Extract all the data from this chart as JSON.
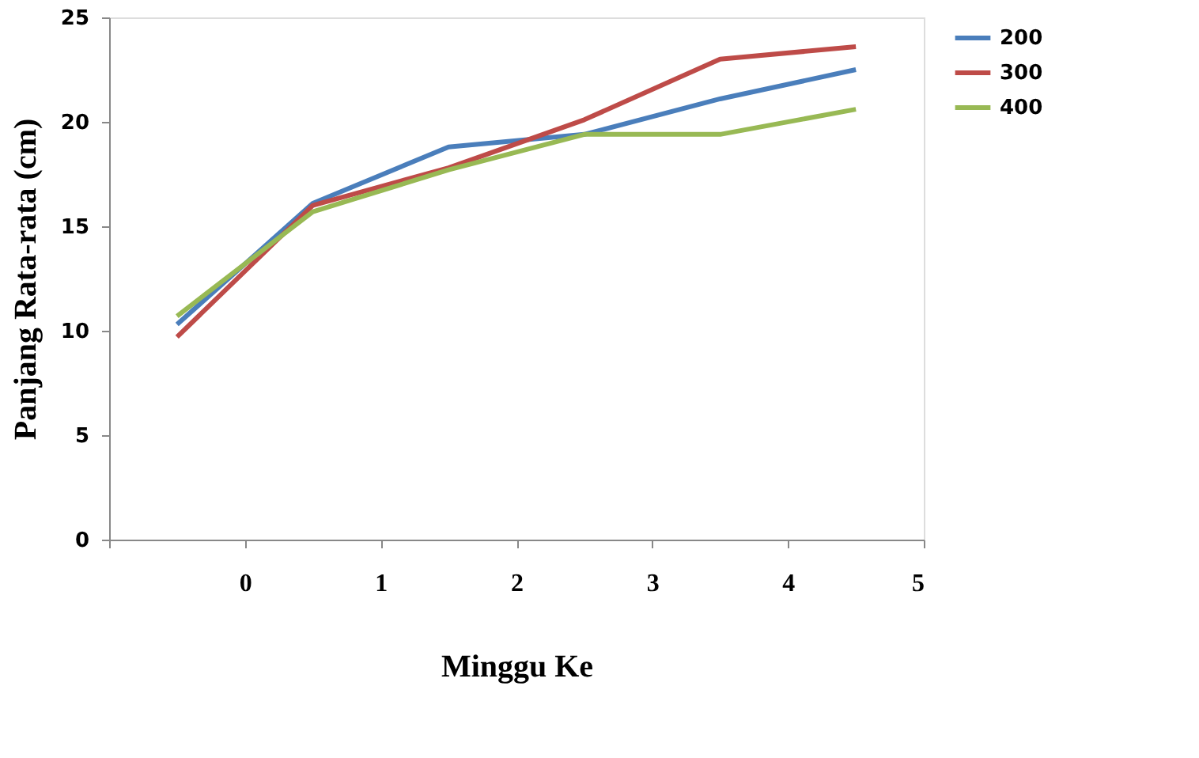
{
  "chart_data": {
    "type": "line",
    "xlabel": "Minggu Ke",
    "ylabel": "Panjang Rata-rata (cm)",
    "x": [
      -0.5,
      0.5,
      1.5,
      2.5,
      3.5,
      4.5
    ],
    "series": [
      {
        "name": "200",
        "color": "#4a7ebb",
        "values": [
          10.3,
          16.1,
          18.8,
          19.4,
          21.1,
          22.5
        ]
      },
      {
        "name": "300",
        "color": "#be4b48",
        "values": [
          9.7,
          16.0,
          17.8,
          20.1,
          23.0,
          23.6
        ]
      },
      {
        "name": "400",
        "color": "#98b954",
        "values": [
          10.7,
          15.7,
          17.7,
          19.4,
          19.4,
          20.6
        ]
      }
    ],
    "xlim": [
      -1,
      5
    ],
    "xticks": [
      {
        "value": -1,
        "label": null
      },
      0,
      1,
      2,
      3,
      4,
      5
    ],
    "ylim": [
      0,
      25
    ],
    "yticks": [
      0,
      5,
      10,
      15,
      20,
      25
    ],
    "grid": false,
    "legend": "right",
    "marker": "none",
    "line_style": "solid"
  }
}
